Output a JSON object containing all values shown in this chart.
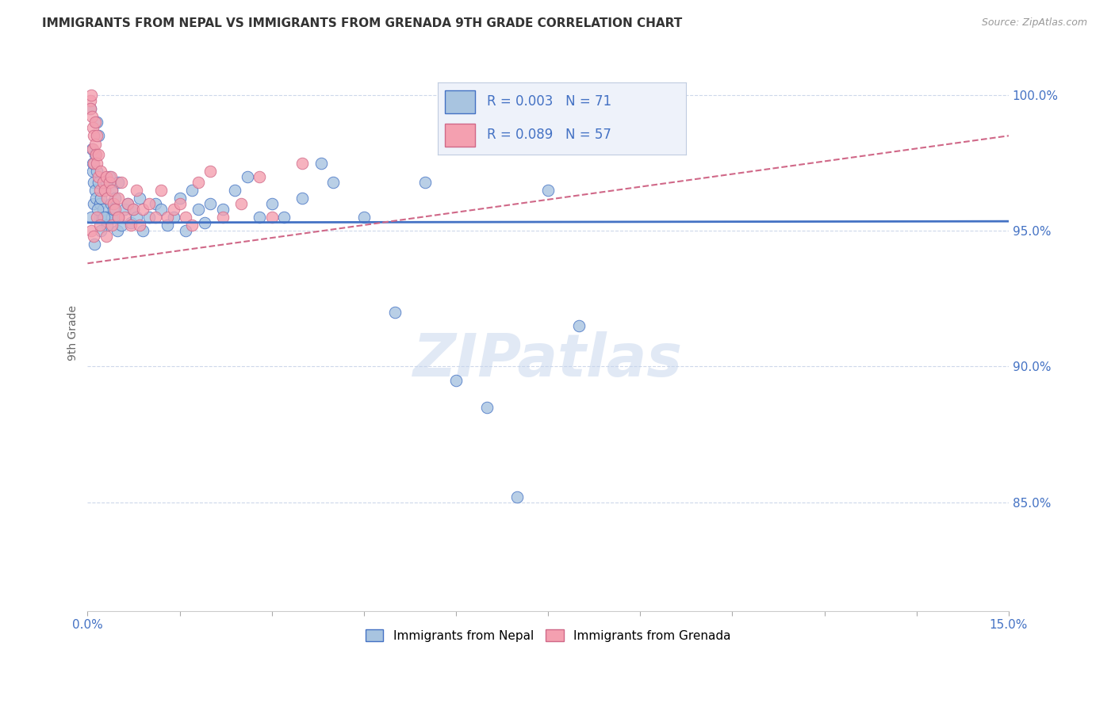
{
  "title": "IMMIGRANTS FROM NEPAL VS IMMIGRANTS FROM GRENADA 9TH GRADE CORRELATION CHART",
  "source": "Source: ZipAtlas.com",
  "ylabel": "9th Grade",
  "xlim": [
    0.0,
    15.0
  ],
  "ylim": [
    81.0,
    101.5
  ],
  "nepal_R": "0.003",
  "nepal_N": "71",
  "grenada_R": "0.089",
  "grenada_N": "57",
  "nepal_color": "#a8c4e0",
  "grenada_color": "#f4a0b0",
  "nepal_line_color": "#4472c4",
  "grenada_line_color": "#d06888",
  "background_color": "#ffffff",
  "grid_color": "#c8d4e8",
  "title_color": "#333333",
  "source_color": "#999999",
  "label_color": "#4472c4",
  "watermark": "ZIPatlas",
  "nepal_trend": [
    95.3,
    95.35
  ],
  "grenada_trend": [
    93.8,
    98.5
  ],
  "nepal_scatter_x": [
    0.05,
    0.07,
    0.08,
    0.09,
    0.1,
    0.1,
    0.12,
    0.13,
    0.14,
    0.15,
    0.15,
    0.17,
    0.18,
    0.2,
    0.2,
    0.22,
    0.25,
    0.28,
    0.3,
    0.3,
    0.32,
    0.35,
    0.38,
    0.4,
    0.4,
    0.42,
    0.45,
    0.48,
    0.5,
    0.5,
    0.55,
    0.6,
    0.65,
    0.7,
    0.75,
    0.8,
    0.85,
    0.9,
    1.0,
    1.1,
    1.2,
    1.3,
    1.4,
    1.5,
    1.6,
    1.7,
    1.8,
    1.9,
    2.0,
    2.2,
    2.4,
    2.6,
    2.8,
    3.0,
    3.2,
    3.5,
    3.8,
    4.0,
    4.5,
    5.0,
    5.5,
    6.0,
    6.5,
    7.0,
    7.5,
    8.0,
    0.06,
    0.11,
    0.16,
    0.21,
    0.26
  ],
  "nepal_scatter_y": [
    99.5,
    98.0,
    97.2,
    97.5,
    96.8,
    96.0,
    97.8,
    96.5,
    96.2,
    99.0,
    97.2,
    96.8,
    98.5,
    95.5,
    96.0,
    96.2,
    95.8,
    96.5,
    95.5,
    96.8,
    95.2,
    97.0,
    96.0,
    95.5,
    96.5,
    95.8,
    96.2,
    95.0,
    95.5,
    96.8,
    95.2,
    95.8,
    96.0,
    95.3,
    95.8,
    95.5,
    96.2,
    95.0,
    95.5,
    96.0,
    95.8,
    95.2,
    95.5,
    96.2,
    95.0,
    96.5,
    95.8,
    95.3,
    96.0,
    95.8,
    96.5,
    97.0,
    95.5,
    96.0,
    95.5,
    96.2,
    97.5,
    96.8,
    95.5,
    92.0,
    96.8,
    89.5,
    88.5,
    85.2,
    96.5,
    91.5,
    95.5,
    94.5,
    95.8,
    95.0,
    95.5
  ],
  "grenada_scatter_x": [
    0.04,
    0.05,
    0.06,
    0.07,
    0.08,
    0.09,
    0.1,
    0.1,
    0.12,
    0.13,
    0.14,
    0.15,
    0.15,
    0.17,
    0.18,
    0.2,
    0.22,
    0.25,
    0.28,
    0.3,
    0.32,
    0.35,
    0.38,
    0.4,
    0.42,
    0.45,
    0.5,
    0.55,
    0.6,
    0.65,
    0.7,
    0.75,
    0.8,
    0.85,
    0.9,
    1.0,
    1.1,
    1.2,
    1.3,
    1.4,
    1.5,
    1.6,
    1.7,
    1.8,
    2.0,
    2.2,
    2.5,
    2.8,
    3.0,
    3.5,
    0.06,
    0.1,
    0.15,
    0.2,
    0.3,
    0.4,
    0.5
  ],
  "grenada_scatter_y": [
    99.8,
    99.5,
    100.0,
    99.2,
    98.8,
    98.0,
    98.5,
    97.5,
    99.0,
    98.2,
    97.8,
    97.5,
    98.5,
    97.0,
    97.8,
    96.5,
    97.2,
    96.8,
    96.5,
    97.0,
    96.2,
    96.8,
    97.0,
    96.5,
    96.0,
    95.8,
    96.2,
    96.8,
    95.5,
    96.0,
    95.2,
    95.8,
    96.5,
    95.2,
    95.8,
    96.0,
    95.5,
    96.5,
    95.5,
    95.8,
    96.0,
    95.5,
    95.2,
    96.8,
    97.2,
    95.5,
    96.0,
    97.0,
    95.5,
    97.5,
    95.0,
    94.8,
    95.5,
    95.2,
    94.8,
    95.2,
    95.5
  ]
}
